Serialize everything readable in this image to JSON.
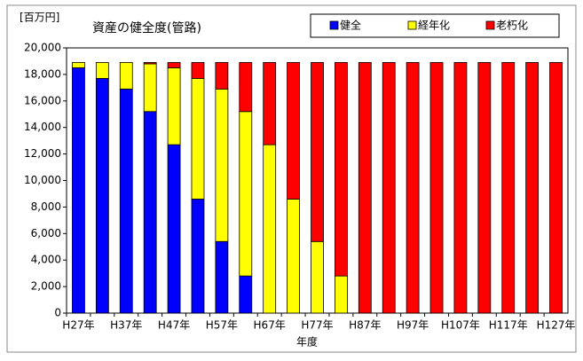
{
  "chart_data": {
    "type": "bar",
    "stacked": true,
    "title": "資産の健全度(管路)",
    "y_unit_label": "[百万円]",
    "x_label": "年度",
    "categories": [
      "H27年",
      null,
      "H37年",
      null,
      "H47年",
      null,
      "H57年",
      null,
      "H67年",
      null,
      "H77年",
      null,
      "H87年",
      null,
      "H97年",
      null,
      "H107年",
      null,
      "H117年",
      null,
      "H127年"
    ],
    "series": [
      {
        "name": "健全",
        "color": "#0000ff",
        "values": [
          18500,
          17700,
          16900,
          15200,
          12700,
          8600,
          5400,
          2800,
          0,
          0,
          0,
          0,
          0,
          0,
          0,
          0,
          0,
          0,
          0,
          0,
          0
        ]
      },
      {
        "name": "経年化",
        "color": "#ffff00",
        "values": [
          400,
          1200,
          2000,
          3600,
          5800,
          9100,
          11500,
          12400,
          12700,
          8600,
          5400,
          2800,
          0,
          0,
          0,
          0,
          0,
          0,
          0,
          0,
          0
        ]
      },
      {
        "name": "老朽化",
        "color": "#ff0000",
        "values": [
          0,
          0,
          0,
          100,
          400,
          1200,
          2000,
          3700,
          6200,
          10300,
          13500,
          16100,
          18900,
          18900,
          18900,
          18900,
          18900,
          18900,
          18900,
          18900,
          18900
        ]
      }
    ],
    "ylim": [
      0,
      20000
    ],
    "yticks": [
      0,
      {
        "value": 2000,
        "label": "2,000"
      },
      {
        "value": 4000,
        "label": "4,000"
      },
      {
        "value": 6000,
        "label": "6,000"
      },
      {
        "value": 8000,
        "label": "8,000"
      },
      {
        "value": 10000,
        "label": "10,000"
      },
      {
        "value": 12000,
        "label": "12,000"
      },
      {
        "value": 14000,
        "label": "14,000"
      },
      {
        "value": 16000,
        "label": "16,000"
      },
      {
        "value": 18000,
        "label": "18,000"
      },
      {
        "value": 20000,
        "label": "20,000"
      }
    ],
    "grid": false,
    "legend": "top-right"
  }
}
